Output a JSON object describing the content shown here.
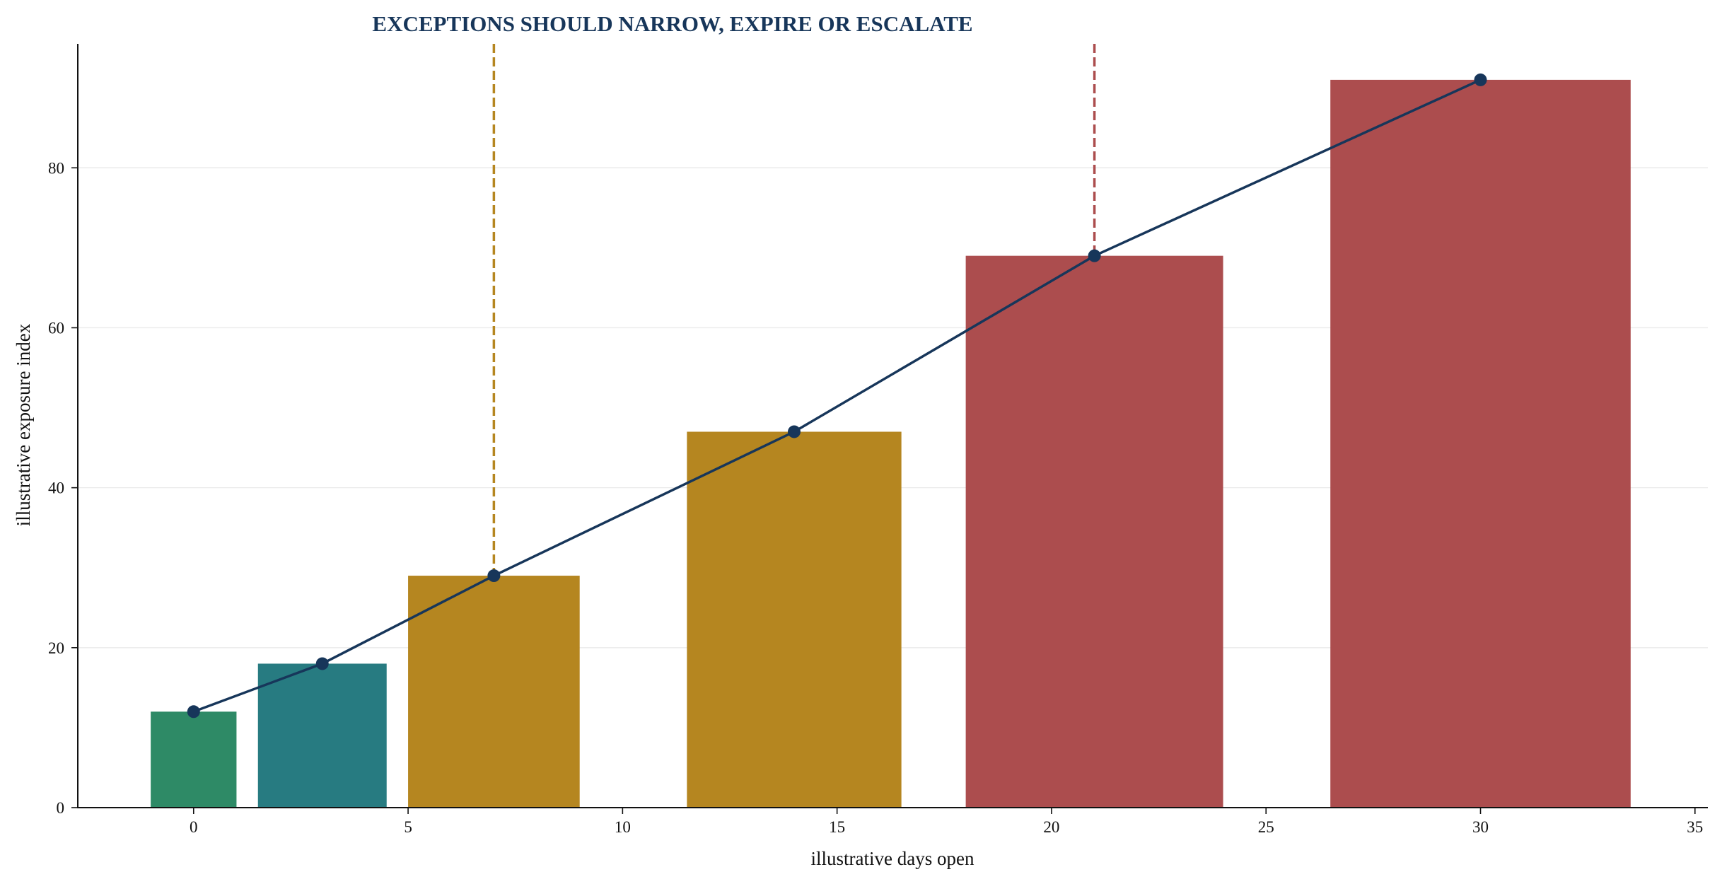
{
  "chart_data": {
    "type": "bar",
    "title": "EXCEPTIONS SHOULD NARROW, EXPIRE OR ESCALATE",
    "xlabel": "illustrative days open",
    "ylabel": "illustrative exposure index",
    "xlim": [
      -2.7,
      35.3
    ],
    "ylim": [
      0,
      95.5
    ],
    "xticks": [
      0,
      5,
      10,
      15,
      20,
      25,
      30,
      35
    ],
    "yticks": [
      0,
      20,
      40,
      60,
      80
    ],
    "grid": "horizontal",
    "bars": [
      {
        "x": 0,
        "width": 2,
        "value": 12,
        "color": "#2e8a66"
      },
      {
        "x": 3,
        "width": 3,
        "value": 18,
        "color": "#277b81"
      },
      {
        "x": 7,
        "width": 4,
        "value": 29,
        "color": "#b58620"
      },
      {
        "x": 14,
        "width": 5,
        "value": 47,
        "color": "#b58620"
      },
      {
        "x": 21,
        "width": 6,
        "value": 69,
        "color": "#ac4d4e"
      },
      {
        "x": 30,
        "width": 7,
        "value": 91,
        "color": "#ac4d4e"
      }
    ],
    "series": [
      {
        "x": [
          0,
          3,
          7,
          14,
          21,
          30
        ],
        "values": [
          12,
          18,
          29,
          47,
          69,
          91
        ],
        "color": "#17365a"
      }
    ],
    "reference_lines": [
      {
        "x": 7,
        "y_from": 29,
        "color": "#b58620",
        "style": "dashed"
      },
      {
        "x": 21,
        "y_from": 69,
        "color": "#ac4d4e",
        "style": "dashed"
      }
    ]
  }
}
